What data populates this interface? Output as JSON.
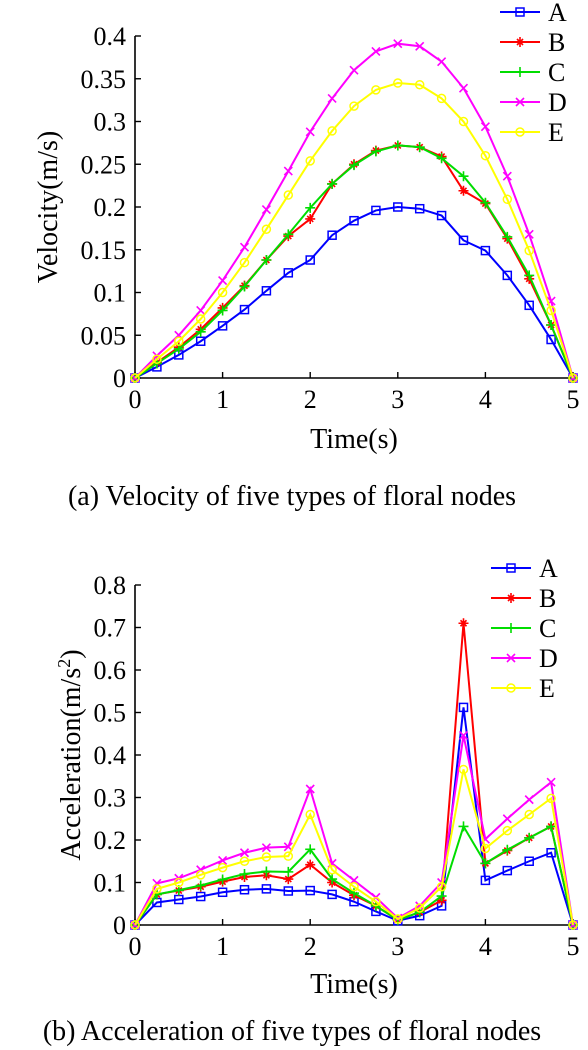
{
  "chart_data": [
    {
      "type": "line",
      "panel": "a",
      "caption": "(a) Velocity of five types of floral nodes",
      "xlabel": "Time(s)",
      "ylabel": "Velocity(m/s)",
      "xlim": [
        0,
        5
      ],
      "ylim": [
        0,
        0.4
      ],
      "xticks": [
        "0",
        "1",
        "2",
        "3",
        "4",
        "5"
      ],
      "yticks": [
        "0",
        "0.05",
        "0.1",
        "0.15",
        "0.2",
        "0.25",
        "0.3",
        "0.35",
        "0.4"
      ],
      "grid": false,
      "legend": "top-right",
      "x": [
        0,
        0.25,
        0.5,
        0.75,
        1.0,
        1.25,
        1.5,
        1.75,
        2.0,
        2.25,
        2.5,
        2.75,
        3.0,
        3.25,
        3.5,
        3.75,
        4.0,
        4.25,
        4.5,
        4.75,
        5.0
      ],
      "series": [
        {
          "name": "A",
          "color": "#0000ff",
          "marker": "square",
          "values": [
            0,
            0.013,
            0.027,
            0.043,
            0.061,
            0.08,
            0.102,
            0.123,
            0.138,
            0.167,
            0.184,
            0.196,
            0.2,
            0.198,
            0.19,
            0.161,
            0.149,
            0.12,
            0.085,
            0.045,
            0
          ]
        },
        {
          "name": "B",
          "color": "#ff0000",
          "marker": "star",
          "values": [
            0,
            0.018,
            0.036,
            0.057,
            0.082,
            0.108,
            0.138,
            0.166,
            0.186,
            0.227,
            0.25,
            0.266,
            0.272,
            0.27,
            0.259,
            0.219,
            0.204,
            0.163,
            0.116,
            0.062,
            0
          ]
        },
        {
          "name": "C",
          "color": "#00dd00",
          "marker": "plus",
          "values": [
            0,
            0.017,
            0.034,
            0.054,
            0.079,
            0.107,
            0.138,
            0.168,
            0.199,
            0.227,
            0.249,
            0.265,
            0.272,
            0.27,
            0.257,
            0.236,
            0.205,
            0.165,
            0.12,
            0.062,
            0
          ]
        },
        {
          "name": "D",
          "color": "#ff00ff",
          "marker": "x",
          "values": [
            0,
            0.026,
            0.05,
            0.079,
            0.114,
            0.153,
            0.197,
            0.242,
            0.288,
            0.327,
            0.36,
            0.382,
            0.391,
            0.388,
            0.37,
            0.339,
            0.294,
            0.236,
            0.168,
            0.09,
            0
          ]
        },
        {
          "name": "E",
          "color": "#ffff00",
          "marker": "circle",
          "values": [
            0,
            0.022,
            0.043,
            0.069,
            0.1,
            0.135,
            0.174,
            0.214,
            0.254,
            0.289,
            0.318,
            0.337,
            0.345,
            0.343,
            0.327,
            0.3,
            0.26,
            0.209,
            0.149,
            0.079,
            0
          ]
        }
      ]
    },
    {
      "type": "line",
      "panel": "b",
      "caption": "(b) Acceleration of five types of floral nodes",
      "xlabel": "Time(s)",
      "ylabel": "Acceleration(m/s",
      "ylabel_sup": "2",
      "ylabel_end": ")",
      "xlim": [
        0,
        5
      ],
      "ylim": [
        0,
        0.8
      ],
      "xticks": [
        "0",
        "1",
        "2",
        "3",
        "4",
        "5"
      ],
      "yticks": [
        "0",
        "0.1",
        "0.2",
        "0.3",
        "0.4",
        "0.5",
        "0.6",
        "0.7",
        "0.8"
      ],
      "grid": false,
      "legend": "top-right",
      "x": [
        0,
        0.25,
        0.5,
        0.75,
        1.0,
        1.25,
        1.5,
        1.75,
        2.0,
        2.25,
        2.5,
        2.75,
        3.0,
        3.25,
        3.5,
        3.75,
        4.0,
        4.25,
        4.5,
        4.75,
        5.0
      ],
      "series": [
        {
          "name": "A",
          "color": "#0000ff",
          "marker": "square",
          "values": [
            0,
            0.053,
            0.06,
            0.067,
            0.077,
            0.083,
            0.085,
            0.08,
            0.081,
            0.072,
            0.055,
            0.032,
            0.01,
            0.022,
            0.045,
            0.512,
            0.105,
            0.128,
            0.15,
            0.17,
            0
          ]
        },
        {
          "name": "B",
          "color": "#ff0000",
          "marker": "star",
          "values": [
            0,
            0.072,
            0.081,
            0.09,
            0.102,
            0.113,
            0.117,
            0.108,
            0.142,
            0.1,
            0.07,
            0.045,
            0.012,
            0.03,
            0.058,
            0.71,
            0.145,
            0.175,
            0.205,
            0.232,
            0
          ]
        },
        {
          "name": "C",
          "color": "#00dd00",
          "marker": "plus",
          "values": [
            0,
            0.072,
            0.082,
            0.093,
            0.107,
            0.12,
            0.126,
            0.125,
            0.178,
            0.108,
            0.075,
            0.045,
            0.012,
            0.03,
            0.068,
            0.232,
            0.145,
            0.177,
            0.205,
            0.232,
            0
          ]
        },
        {
          "name": "D",
          "color": "#ff00ff",
          "marker": "x",
          "values": [
            0,
            0.098,
            0.11,
            0.13,
            0.152,
            0.17,
            0.182,
            0.184,
            0.32,
            0.145,
            0.105,
            0.065,
            0.016,
            0.045,
            0.1,
            0.446,
            0.202,
            0.25,
            0.295,
            0.336,
            0
          ]
        },
        {
          "name": "E",
          "color": "#ffff00",
          "marker": "circle",
          "values": [
            0,
            0.085,
            0.1,
            0.118,
            0.135,
            0.15,
            0.16,
            0.162,
            0.26,
            0.13,
            0.09,
            0.055,
            0.014,
            0.04,
            0.09,
            0.366,
            0.18,
            0.222,
            0.26,
            0.298,
            0
          ]
        }
      ]
    }
  ]
}
